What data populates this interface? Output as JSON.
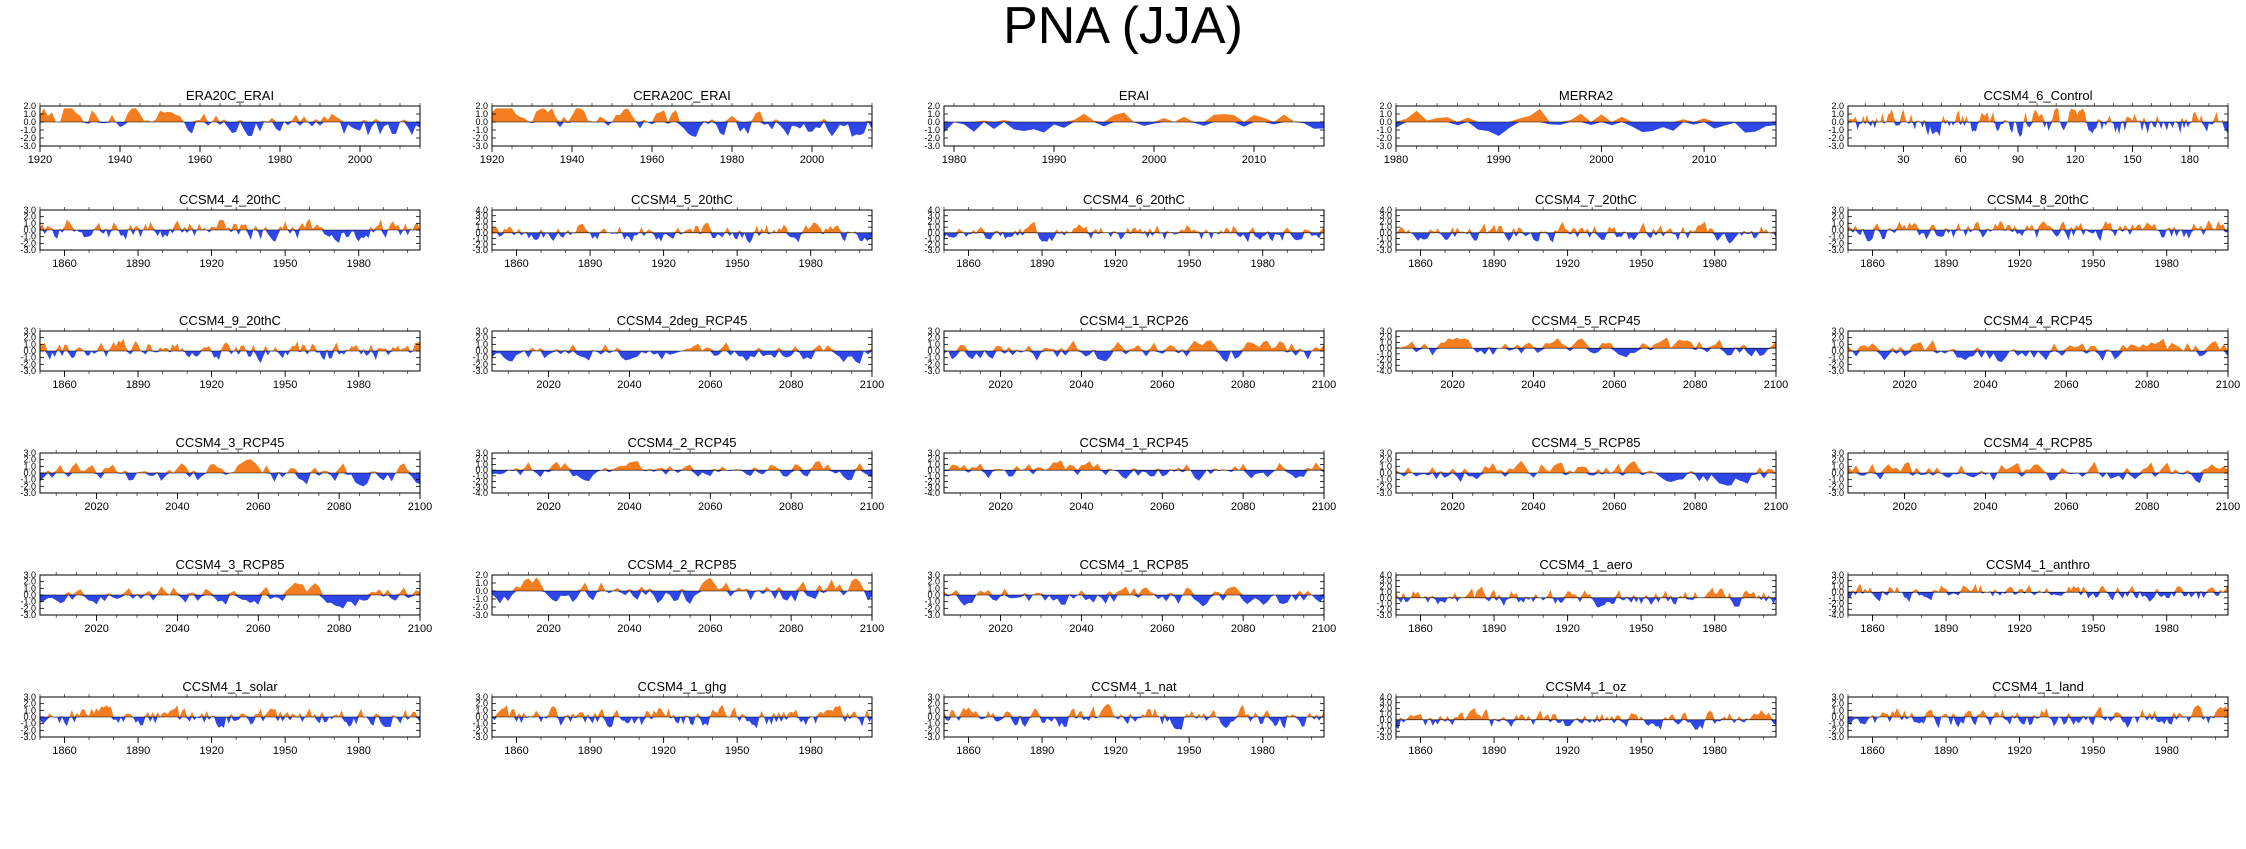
{
  "title": "PNA (JJA)",
  "colors": {
    "positive": "#f47d20",
    "negative": "#2f46e6",
    "axis": "#000000"
  },
  "chart_data": [
    {
      "type": "area",
      "title": "ERA20C_ERAI",
      "x_start": 1920,
      "x_end": 2015,
      "xticks": [
        1920,
        1940,
        1960,
        1980,
        2000
      ],
      "ylim": [
        -3,
        2
      ],
      "yticks": [
        2,
        1,
        0,
        -1,
        -2,
        -3
      ],
      "ytick_labels": [
        "2.0",
        "1.0",
        "0.0",
        "-1.0",
        "-2.0",
        "-3.0"
      ],
      "seed": 1,
      "bias": 0.7
    },
    {
      "type": "area",
      "title": "CERA20C_ERAI",
      "x_start": 1920,
      "x_end": 2015,
      "xticks": [
        1920,
        1940,
        1960,
        1980,
        2000
      ],
      "ylim": [
        -3,
        2
      ],
      "yticks": [
        2,
        1,
        0,
        -1,
        -2,
        -3
      ],
      "ytick_labels": [
        "2.0",
        "1.0",
        "0.0",
        "-1.0",
        "-2.0",
        "-3.0"
      ],
      "seed": 2,
      "bias": 0.5
    },
    {
      "type": "area",
      "title": "ERAI",
      "x_start": 1979,
      "x_end": 2017,
      "xticks": [
        1980,
        1990,
        2000,
        2010
      ],
      "ylim": [
        -3,
        2
      ],
      "yticks": [
        2,
        1,
        0,
        -1,
        -2,
        -3
      ],
      "ytick_labels": [
        "2.0",
        "1.0",
        "0.0",
        "-1.0",
        "-2.0",
        "-3.0"
      ],
      "seed": 3,
      "bias": 0
    },
    {
      "type": "area",
      "title": "MERRA2",
      "x_start": 1980,
      "x_end": 2017,
      "xticks": [
        1980,
        1990,
        2000,
        2010
      ],
      "ylim": [
        -3,
        2
      ],
      "yticks": [
        2,
        1,
        0,
        -1,
        -2,
        -3
      ],
      "ytick_labels": [
        "2.0",
        "1.0",
        "0.0",
        "-1.0",
        "-2.0",
        "-3.0"
      ],
      "seed": 4,
      "bias": 0
    },
    {
      "type": "area",
      "title": "CCSM4_6_Control",
      "x_start": 1,
      "x_end": 200,
      "xticks": [
        30,
        60,
        90,
        120,
        150,
        180
      ],
      "ylim": [
        -3,
        2
      ],
      "yticks": [
        2,
        1,
        0,
        -1,
        -2,
        -3
      ],
      "ytick_labels": [
        "2.0",
        "1.0",
        "0.0",
        "-1.0",
        "-2.0",
        "-3.0"
      ],
      "seed": 5,
      "bias": 0
    },
    {
      "type": "area",
      "title": "CCSM4_4_20thC",
      "x_start": 1850,
      "x_end": 2005,
      "xticks": [
        1860,
        1890,
        1920,
        1950,
        1980
      ],
      "ylim": [
        -3,
        3
      ],
      "yticks": [
        3,
        2,
        1,
        0,
        -1,
        -2,
        -3
      ],
      "ytick_labels": [
        "3.0",
        "2.0",
        "1.0",
        "0.0",
        "-1.0",
        "-2.0",
        "-3.0"
      ],
      "seed": 6,
      "bias": 0
    },
    {
      "type": "area",
      "title": "CCSM4_5_20thC",
      "x_start": 1850,
      "x_end": 2005,
      "xticks": [
        1860,
        1890,
        1920,
        1950,
        1980
      ],
      "ylim": [
        -3,
        4
      ],
      "yticks": [
        4,
        3,
        2,
        1,
        0,
        -1,
        -2,
        -3
      ],
      "ytick_labels": [
        "4.0",
        "3.0",
        "2.0",
        "1.0",
        "0.0",
        "-1.0",
        "-2.0",
        "-3.0"
      ],
      "seed": 7,
      "bias": 0
    },
    {
      "type": "area",
      "title": "CCSM4_6_20thC",
      "x_start": 1850,
      "x_end": 2005,
      "xticks": [
        1860,
        1890,
        1920,
        1950,
        1980
      ],
      "ylim": [
        -3,
        4
      ],
      "yticks": [
        4,
        3,
        2,
        1,
        0,
        -1,
        -2,
        -3
      ],
      "ytick_labels": [
        "4.0",
        "3.0",
        "2.0",
        "1.0",
        "0.0",
        "-1.0",
        "-2.0",
        "-3.0"
      ],
      "seed": 8,
      "bias": 0
    },
    {
      "type": "area",
      "title": "CCSM4_7_20thC",
      "x_start": 1850,
      "x_end": 2005,
      "xticks": [
        1860,
        1890,
        1920,
        1950,
        1980
      ],
      "ylim": [
        -3,
        4
      ],
      "yticks": [
        4,
        3,
        2,
        1,
        0,
        -1,
        -2,
        -3
      ],
      "ytick_labels": [
        "4.0",
        "3.0",
        "2.0",
        "1.0",
        "0.0",
        "-1.0",
        "-2.0",
        "-3.0"
      ],
      "seed": 9,
      "bias": 0
    },
    {
      "type": "area",
      "title": "CCSM4_8_20thC",
      "x_start": 1850,
      "x_end": 2005,
      "xticks": [
        1860,
        1890,
        1920,
        1950,
        1980
      ],
      "ylim": [
        -3,
        3
      ],
      "yticks": [
        3,
        2,
        1,
        0,
        -1,
        -2,
        -3
      ],
      "ytick_labels": [
        "3.0",
        "2.0",
        "1.0",
        "0.0",
        "-1.0",
        "-2.0",
        "-3.0"
      ],
      "seed": 10,
      "bias": 0
    },
    {
      "type": "area",
      "title": "CCSM4_9_20thC",
      "x_start": 1850,
      "x_end": 2005,
      "xticks": [
        1860,
        1890,
        1920,
        1950,
        1980
      ],
      "ylim": [
        -3,
        3
      ],
      "yticks": [
        3,
        2,
        1,
        0,
        -1,
        -2,
        -3
      ],
      "ytick_labels": [
        "3.0",
        "2.0",
        "1.0",
        "0.0",
        "-1.0",
        "-2.0",
        "-3.0"
      ],
      "seed": 11,
      "bias": 0
    },
    {
      "type": "area",
      "title": "CCSM4_2deg_RCP45",
      "x_start": 2006,
      "x_end": 2100,
      "xticks": [
        2020,
        2040,
        2060,
        2080,
        2100
      ],
      "ylim": [
        -3,
        3
      ],
      "yticks": [
        3,
        2,
        1,
        0,
        -1,
        -2,
        -3
      ],
      "ytick_labels": [
        "3.0",
        "2.0",
        "1.0",
        "0.0",
        "-1.0",
        "-2.0",
        "-3.0"
      ],
      "seed": 12,
      "bias": 0
    },
    {
      "type": "area",
      "title": "CCSM4_1_RCP26",
      "x_start": 2006,
      "x_end": 2100,
      "xticks": [
        2020,
        2040,
        2060,
        2080,
        2100
      ],
      "ylim": [
        -3,
        3
      ],
      "yticks": [
        3,
        2,
        1,
        0,
        -1,
        -2,
        -3
      ],
      "ytick_labels": [
        "3.0",
        "2.0",
        "1.0",
        "0.0",
        "-1.0",
        "-2.0",
        "-3.0"
      ],
      "seed": 13,
      "bias": 0
    },
    {
      "type": "area",
      "title": "CCSM4_5_RCP45",
      "x_start": 2006,
      "x_end": 2100,
      "xticks": [
        2020,
        2040,
        2060,
        2080,
        2100
      ],
      "ylim": [
        -4,
        3
      ],
      "yticks": [
        3,
        2,
        1,
        0,
        -1,
        -2,
        -3,
        -4
      ],
      "ytick_labels": [
        "3.0",
        "2.0",
        "1.0",
        "0.0",
        "-1.0",
        "-2.0",
        "-3.0",
        "-4.0"
      ],
      "seed": 14,
      "bias": 0
    },
    {
      "type": "area",
      "title": "CCSM4_4_RCP45",
      "x_start": 2006,
      "x_end": 2100,
      "xticks": [
        2020,
        2040,
        2060,
        2080,
        2100
      ],
      "ylim": [
        -3,
        3
      ],
      "yticks": [
        3,
        2,
        1,
        0,
        -1,
        -2,
        -3
      ],
      "ytick_labels": [
        "3.0",
        "2.0",
        "1.0",
        "0.0",
        "-1.0",
        "-2.0",
        "-3.0"
      ],
      "seed": 15,
      "bias": 0
    },
    {
      "type": "area",
      "title": "CCSM4_3_RCP45",
      "x_start": 2006,
      "x_end": 2100,
      "xticks": [
        2020,
        2040,
        2060,
        2080,
        2100
      ],
      "ylim": [
        -3,
        3
      ],
      "yticks": [
        3,
        2,
        1,
        0,
        -1,
        -2,
        -3
      ],
      "ytick_labels": [
        "3.0",
        "2.0",
        "1.0",
        "0.0",
        "-1.0",
        "-2.0",
        "-3.0"
      ],
      "seed": 16,
      "bias": 0
    },
    {
      "type": "area",
      "title": "CCSM4_2_RCP45",
      "x_start": 2006,
      "x_end": 2100,
      "xticks": [
        2020,
        2040,
        2060,
        2080,
        2100
      ],
      "ylim": [
        -4,
        3
      ],
      "yticks": [
        3,
        2,
        1,
        0,
        -1,
        -2,
        -3,
        -4
      ],
      "ytick_labels": [
        "3.0",
        "2.0",
        "1.0",
        "0.0",
        "-1.0",
        "-2.0",
        "-3.0",
        "-4.0"
      ],
      "seed": 17,
      "bias": 0
    },
    {
      "type": "area",
      "title": "CCSM4_1_RCP45",
      "x_start": 2006,
      "x_end": 2100,
      "xticks": [
        2020,
        2040,
        2060,
        2080,
        2100
      ],
      "ylim": [
        -4,
        3
      ],
      "yticks": [
        3,
        2,
        1,
        0,
        -1,
        -2,
        -3,
        -4
      ],
      "ytick_labels": [
        "3.0",
        "2.0",
        "1.0",
        "0.0",
        "-1.0",
        "-2.0",
        "-3.0",
        "-4.0"
      ],
      "seed": 18,
      "bias": 0
    },
    {
      "type": "area",
      "title": "CCSM4_5_RCP85",
      "x_start": 2006,
      "x_end": 2100,
      "xticks": [
        2020,
        2040,
        2060,
        2080,
        2100
      ],
      "ylim": [
        -3,
        3
      ],
      "yticks": [
        3,
        2,
        1,
        0,
        -1,
        -2,
        -3
      ],
      "ytick_labels": [
        "3.0",
        "2.0",
        "1.0",
        "0.0",
        "-1.0",
        "-2.0",
        "-3.0"
      ],
      "seed": 19,
      "bias": 0
    },
    {
      "type": "area",
      "title": "CCSM4_4_RCP85",
      "x_start": 2006,
      "x_end": 2100,
      "xticks": [
        2020,
        2040,
        2060,
        2080,
        2100
      ],
      "ylim": [
        -3,
        3
      ],
      "yticks": [
        3,
        2,
        1,
        0,
        -1,
        -2,
        -3
      ],
      "ytick_labels": [
        "3.0",
        "2.0",
        "1.0",
        "0.0",
        "-1.0",
        "-2.0",
        "-3.0"
      ],
      "seed": 20,
      "bias": 0
    },
    {
      "type": "area",
      "title": "CCSM4_3_RCP85",
      "x_start": 2006,
      "x_end": 2100,
      "xticks": [
        2020,
        2040,
        2060,
        2080,
        2100
      ],
      "ylim": [
        -3,
        3
      ],
      "yticks": [
        3,
        2,
        1,
        0,
        -1,
        -2,
        -3
      ],
      "ytick_labels": [
        "3.0",
        "2.0",
        "1.0",
        "0.0",
        "-1.0",
        "-2.0",
        "-3.0"
      ],
      "seed": 21,
      "bias": 0
    },
    {
      "type": "area",
      "title": "CCSM4_2_RCP85",
      "x_start": 2006,
      "x_end": 2100,
      "xticks": [
        2020,
        2040,
        2060,
        2080,
        2100
      ],
      "ylim": [
        -3,
        2
      ],
      "yticks": [
        2,
        1,
        0,
        -1,
        -2,
        -3
      ],
      "ytick_labels": [
        "2.0",
        "1.0",
        "0.0",
        "-1.0",
        "-2.0",
        "-3.0"
      ],
      "seed": 22,
      "bias": 0
    },
    {
      "type": "area",
      "title": "CCSM4_1_RCP85",
      "x_start": 2006,
      "x_end": 2100,
      "xticks": [
        2020,
        2040,
        2060,
        2080,
        2100
      ],
      "ylim": [
        -3,
        3
      ],
      "yticks": [
        3,
        2,
        1,
        0,
        -1,
        -2,
        -3
      ],
      "ytick_labels": [
        "3.0",
        "2.0",
        "1.0",
        "0.0",
        "-1.0",
        "-2.0",
        "-3.0"
      ],
      "seed": 23,
      "bias": 0
    },
    {
      "type": "area",
      "title": "CCSM4_1_aero",
      "x_start": 1850,
      "x_end": 2005,
      "xticks": [
        1860,
        1890,
        1920,
        1950,
        1980
      ],
      "ylim": [
        -3,
        4
      ],
      "yticks": [
        4,
        3,
        2,
        1,
        0,
        -1,
        -2,
        -3
      ],
      "ytick_labels": [
        "4.0",
        "3.0",
        "2.0",
        "1.0",
        "0.0",
        "-1.0",
        "-2.0",
        "-3.0"
      ],
      "seed": 24,
      "bias": 0
    },
    {
      "type": "area",
      "title": "CCSM4_1_anthro",
      "x_start": 1850,
      "x_end": 2005,
      "xticks": [
        1860,
        1890,
        1920,
        1950,
        1980
      ],
      "ylim": [
        -4,
        3
      ],
      "yticks": [
        3,
        2,
        1,
        0,
        -1,
        -2,
        -3,
        -4
      ],
      "ytick_labels": [
        "3.0",
        "2.0",
        "1.0",
        "0.0",
        "-1.0",
        "-2.0",
        "-3.0",
        "-4.0"
      ],
      "seed": 25,
      "bias": 0
    },
    {
      "type": "area",
      "title": "CCSM4_1_solar",
      "x_start": 1850,
      "x_end": 2005,
      "xticks": [
        1860,
        1890,
        1920,
        1950,
        1980
      ],
      "ylim": [
        -3,
        3
      ],
      "yticks": [
        3,
        2,
        1,
        0,
        -1,
        -2,
        -3
      ],
      "ytick_labels": [
        "3.0",
        "2.0",
        "1.0",
        "0.0",
        "-1.0",
        "-2.0",
        "-3.0"
      ],
      "seed": 26,
      "bias": 0
    },
    {
      "type": "area",
      "title": "CCSM4_1_ghg",
      "x_start": 1850,
      "x_end": 2005,
      "xticks": [
        1860,
        1890,
        1920,
        1950,
        1980
      ],
      "ylim": [
        -3,
        3
      ],
      "yticks": [
        3,
        2,
        1,
        0,
        -1,
        -2,
        -3
      ],
      "ytick_labels": [
        "3.0",
        "2.0",
        "1.0",
        "0.0",
        "-1.0",
        "-2.0",
        "-3.0"
      ],
      "seed": 27,
      "bias": 0
    },
    {
      "type": "area",
      "title": "CCSM4_1_nat",
      "x_start": 1850,
      "x_end": 2005,
      "xticks": [
        1860,
        1890,
        1920,
        1950,
        1980
      ],
      "ylim": [
        -3,
        3
      ],
      "yticks": [
        3,
        2,
        1,
        0,
        -1,
        -2,
        -3
      ],
      "ytick_labels": [
        "3.0",
        "2.0",
        "1.0",
        "0.0",
        "-1.0",
        "-2.0",
        "-3.0"
      ],
      "seed": 28,
      "bias": 0
    },
    {
      "type": "area",
      "title": "CCSM4_1_oz",
      "x_start": 1850,
      "x_end": 2005,
      "xticks": [
        1860,
        1890,
        1920,
        1950,
        1980
      ],
      "ylim": [
        -3,
        4
      ],
      "yticks": [
        4,
        3,
        2,
        1,
        0,
        -1,
        -2,
        -3
      ],
      "ytick_labels": [
        "4.0",
        "3.0",
        "2.0",
        "1.0",
        "0.0",
        "-1.0",
        "-2.0",
        "-3.0"
      ],
      "seed": 29,
      "bias": 0
    },
    {
      "type": "area",
      "title": "CCSM4_1_land",
      "x_start": 1850,
      "x_end": 2005,
      "xticks": [
        1860,
        1890,
        1920,
        1950,
        1980
      ],
      "ylim": [
        -3,
        3
      ],
      "yticks": [
        3,
        2,
        1,
        0,
        -1,
        -2,
        -3
      ],
      "ytick_labels": [
        "3.0",
        "2.0",
        "1.0",
        "0.0",
        "-1.0",
        "-2.0",
        "-3.0"
      ],
      "seed": 30,
      "bias": 0
    }
  ]
}
